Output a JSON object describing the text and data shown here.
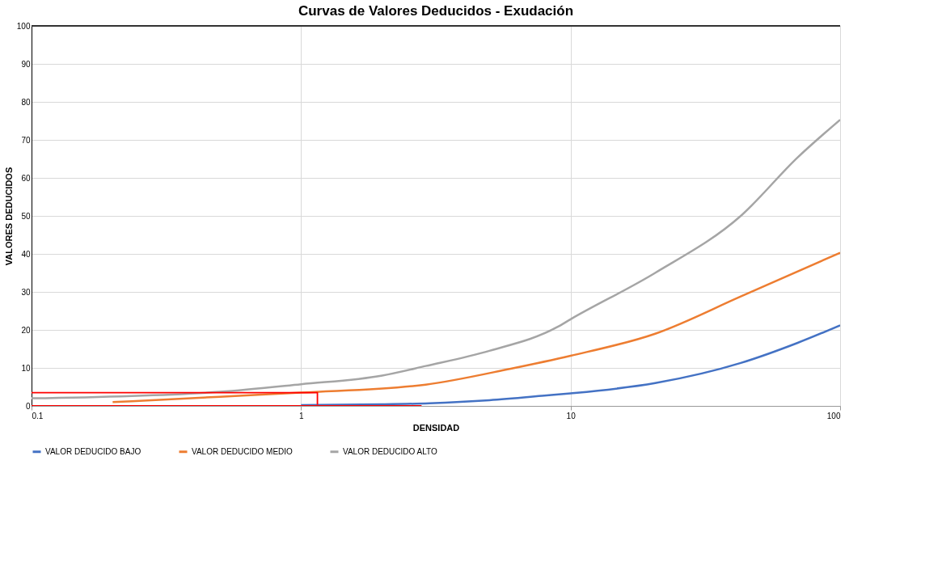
{
  "chart_data": {
    "type": "line",
    "title": "Curvas de Valores Deducidos - Exudación",
    "xlabel": "DENSIDAD",
    "ylabel": "VALORES DEDUCIDOS",
    "log": "x",
    "xlim": [
      0.1,
      100
    ],
    "xticks": [
      0.1,
      1,
      10,
      100
    ],
    "ylim": [
      0,
      100
    ],
    "yticks": [
      0,
      10,
      20,
      30,
      40,
      50,
      60,
      70,
      80,
      90,
      100
    ],
    "grid": true,
    "legend": "bottom",
    "marker": "none",
    "line_style": "solid",
    "series": [
      {
        "name": "VALOR DEDUCIDO BAJO",
        "color": "#4472c4",
        "x": [
          1,
          2,
          3,
          5,
          8,
          10,
          20.6,
          42.8,
          69.6,
          100
        ],
        "values": [
          0.2,
          0.4,
          0.7,
          1.5,
          2.7,
          3.3,
          6,
          11.3,
          16.6,
          21.2
        ]
      },
      {
        "name": "VALOR DEDUCIDO MEDIO",
        "color": "#ed7d31",
        "x": [
          0.2,
          0.5,
          1,
          2.9,
          6,
          10,
          20.6,
          42.8,
          100
        ],
        "values": [
          1,
          2.4,
          3.5,
          5.6,
          9.8,
          13.2,
          19,
          28.8,
          40.3
        ]
      },
      {
        "name": "VALOR DEDUCIDO ALTO",
        "color": "#a5a5a5",
        "x": [
          0.1,
          0.5,
          1,
          2,
          2.9,
          5,
          8.9,
          10,
          20.6,
          42.8,
          69.6,
          100
        ],
        "values": [
          2,
          3.7,
          5.7,
          8,
          10.5,
          14.5,
          20.7,
          22.8,
          35,
          50,
          65.4,
          75.3
        ]
      },
      {
        "color": "#ff0000",
        "x": [
          1.15,
          1.15,
          0.1
        ],
        "values": [
          0.3,
          3.5,
          3.5
        ]
      },
      {
        "color": "#ff0000",
        "x": [
          2.8,
          0.1
        ],
        "values": [
          0,
          0
        ]
      }
    ]
  }
}
